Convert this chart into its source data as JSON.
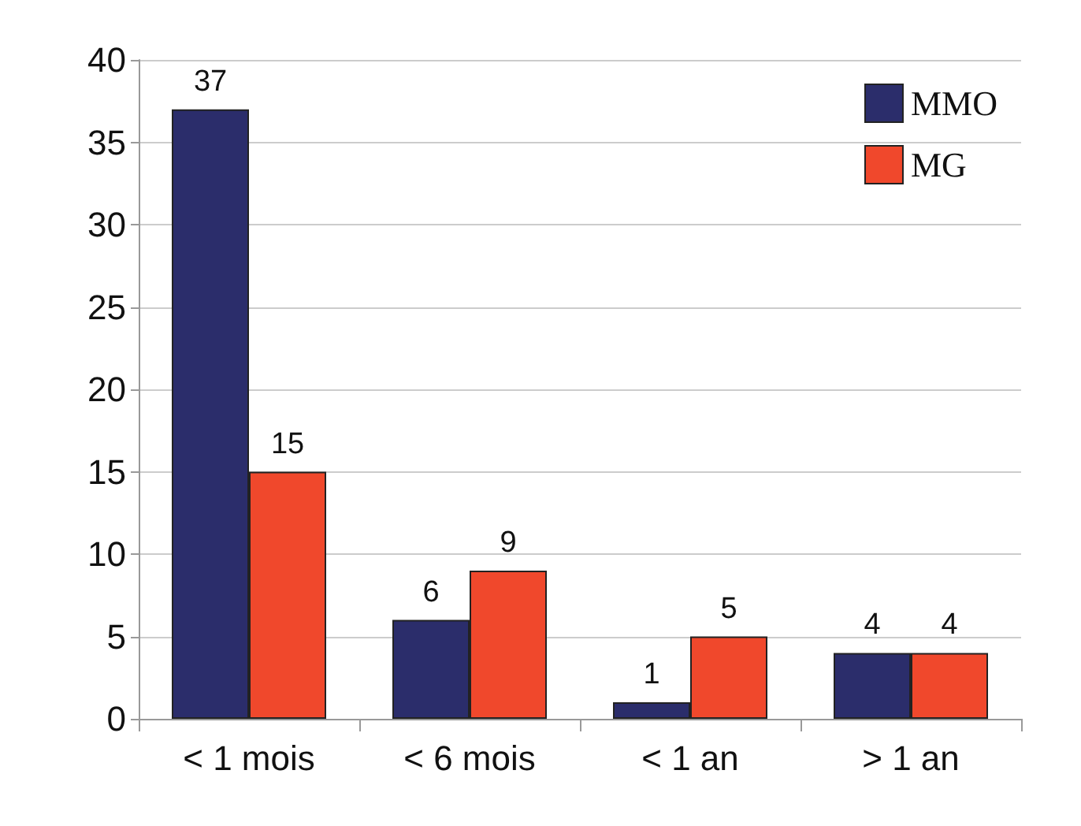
{
  "chart_data": {
    "type": "bar",
    "categories": [
      "< 1 mois",
      "< 6 mois",
      "< 1 an",
      "> 1 an"
    ],
    "series": [
      {
        "name": "MMO",
        "color": "#2b2d6b",
        "values": [
          37,
          6,
          1,
          4
        ]
      },
      {
        "name": "MG",
        "color": "#f0482c",
        "values": [
          15,
          9,
          5,
          4
        ]
      }
    ],
    "ylim": [
      0,
      40
    ],
    "yticks": [
      0,
      5,
      10,
      15,
      20,
      25,
      30,
      35,
      40
    ],
    "grid": "y",
    "legend": "top right",
    "data_labels": true
  }
}
